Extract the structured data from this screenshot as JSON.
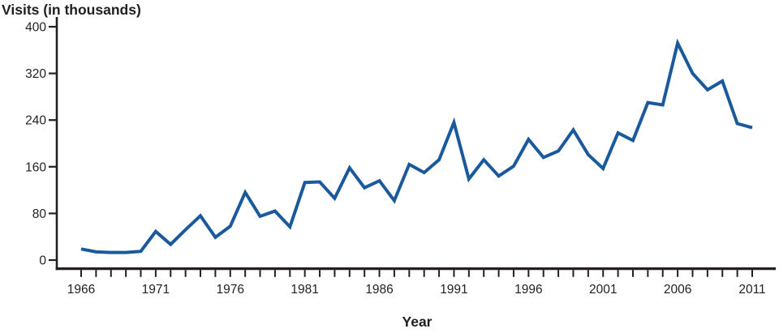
{
  "chart_data": {
    "type": "line",
    "title": "Visits (in thousands)",
    "xlabel": "Year",
    "ylabel": "Visits (in thousands)",
    "series": [
      {
        "name": "Visits (in thousands)",
        "x": [
          1966,
          1967,
          1968,
          1969,
          1970,
          1971,
          1972,
          1973,
          1974,
          1975,
          1976,
          1977,
          1978,
          1979,
          1980,
          1981,
          1982,
          1983,
          1984,
          1985,
          1986,
          1987,
          1988,
          1989,
          1990,
          1991,
          1992,
          1993,
          1994,
          1995,
          1996,
          1997,
          1998,
          1999,
          2000,
          2001,
          2002,
          2003,
          2004,
          2005,
          2006,
          2007,
          2008,
          2009,
          2010,
          2011
        ],
        "values": [
          19,
          14,
          13,
          13,
          15,
          49,
          27,
          52,
          76,
          39,
          58,
          116,
          75,
          84,
          57,
          133,
          134,
          106,
          158,
          124,
          136,
          102,
          164,
          150,
          172,
          236,
          139,
          172,
          144,
          161,
          207,
          176,
          187,
          223,
          181,
          157,
          218,
          205,
          270,
          266,
          372,
          320,
          292,
          307,
          234,
          227
        ]
      }
    ],
    "xlim": [
      1966,
      2011
    ],
    "ylim": [
      0,
      400
    ],
    "y_ticks": [
      0,
      80,
      160,
      240,
      320,
      400
    ],
    "x_minor_tick_every_year": true,
    "x_tick_labels": [
      "1966",
      "1971",
      "1976",
      "1981",
      "1986",
      "1991",
      "1996",
      "2001",
      "2006",
      "2011"
    ],
    "x_label_years": [
      1966,
      1971,
      1976,
      1981,
      1986,
      1991,
      1996,
      2001,
      2006,
      2011
    ],
    "grid": false,
    "legend_position": "none",
    "line_color": "#1a5a9c",
    "axis_color": "#231f20",
    "text_color": "#231f20"
  }
}
